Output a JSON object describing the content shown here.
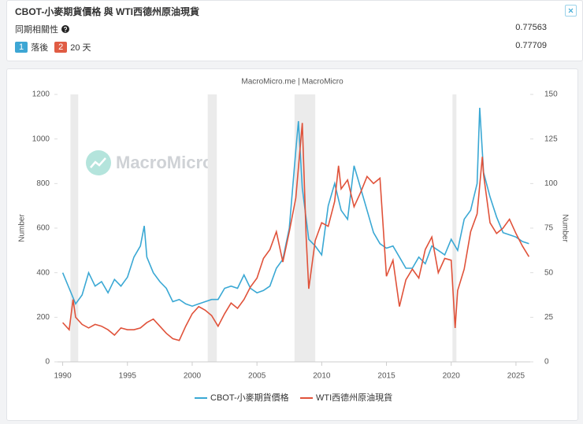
{
  "header": {
    "title": "CBOT-小麥期貨價格 與 WTI西德州原油現貨",
    "rows": [
      {
        "label": "同期相關性",
        "value": "0.77563"
      },
      {
        "badge1": "1",
        "text1": "落後",
        "badge2": "2",
        "text2": "20 天",
        "value": "0.77709"
      }
    ]
  },
  "chart_data": {
    "type": "line",
    "title": "MacroMicro.me | MacroMicro",
    "watermark": "MacroMicro",
    "ylabel": "Number",
    "y2label": "Number",
    "xlim": [
      1989.6,
      2026.1
    ],
    "xticks": [
      1990,
      1995,
      2000,
      2005,
      2010,
      2015,
      2020,
      2025
    ],
    "ylim": [
      0,
      1200
    ],
    "yticks": [
      0,
      200,
      400,
      600,
      800,
      1000,
      1200
    ],
    "y2lim": [
      0,
      150
    ],
    "y2ticks": [
      0,
      25,
      50,
      75,
      100,
      125,
      150
    ],
    "shaded_periods": [
      [
        1990.6,
        1991.2
      ],
      [
        2001.2,
        2001.9
      ],
      [
        2007.9,
        2009.5
      ],
      [
        2020.1,
        2020.4
      ]
    ],
    "legend": "bottom",
    "series": [
      {
        "name": "CBOT-小麥期貨價格",
        "color": "#3aa8d4",
        "axis": "y",
        "x": [
          1990,
          1990.5,
          1991,
          1991.5,
          1992,
          1992.5,
          1993,
          1993.5,
          1994,
          1994.5,
          1995,
          1995.5,
          1996,
          1996.3,
          1996.5,
          1997,
          1997.5,
          1998,
          1998.5,
          1999,
          1999.5,
          2000,
          2000.5,
          2001,
          2001.5,
          2002,
          2002.5,
          2003,
          2003.5,
          2004,
          2004.5,
          2005,
          2005.5,
          2006,
          2006.5,
          2007,
          2007.5,
          2008,
          2008.2,
          2008.5,
          2009,
          2009.5,
          2010,
          2010.5,
          2011,
          2011.5,
          2012,
          2012.5,
          2013,
          2013.5,
          2014,
          2014.5,
          2015,
          2015.5,
          2016,
          2016.5,
          2017,
          2017.5,
          2018,
          2018.5,
          2019,
          2019.5,
          2020,
          2020.5,
          2021,
          2021.5,
          2022,
          2022.2,
          2022.5,
          2023,
          2023.5,
          2024,
          2024.5,
          2025,
          2025.5,
          2026
        ],
        "values": [
          400,
          330,
          260,
          300,
          400,
          340,
          360,
          310,
          370,
          340,
          380,
          470,
          520,
          610,
          470,
          400,
          360,
          330,
          270,
          280,
          260,
          250,
          260,
          270,
          280,
          280,
          330,
          340,
          330,
          390,
          330,
          310,
          320,
          340,
          420,
          460,
          600,
          950,
          1080,
          780,
          550,
          520,
          480,
          700,
          800,
          680,
          640,
          880,
          780,
          680,
          580,
          530,
          510,
          520,
          470,
          420,
          420,
          470,
          440,
          520,
          500,
          480,
          550,
          500,
          640,
          680,
          800,
          1140,
          850,
          740,
          650,
          580,
          570,
          560,
          540,
          530
        ]
      },
      {
        "name": "WTI西德州原油現貨",
        "color": "#e0523a",
        "axis": "y2",
        "x": [
          1990,
          1990.5,
          1990.8,
          1991,
          1991.5,
          1992,
          1992.5,
          1993,
          1993.5,
          1994,
          1994.5,
          1995,
          1995.5,
          1996,
          1996.5,
          1997,
          1997.5,
          1998,
          1998.5,
          1999,
          1999.5,
          2000,
          2000.5,
          2001,
          2001.5,
          2002,
          2002.5,
          2003,
          2003.5,
          2004,
          2004.5,
          2005,
          2005.5,
          2006,
          2006.5,
          2007,
          2007.5,
          2008,
          2008.5,
          2008.8,
          2009,
          2009.5,
          2010,
          2010.5,
          2011,
          2011.3,
          2011.5,
          2012,
          2012.5,
          2013,
          2013.5,
          2014,
          2014.5,
          2015,
          2015.5,
          2016,
          2016.5,
          2017,
          2017.5,
          2018,
          2018.5,
          2019,
          2019.5,
          2020,
          2020.3,
          2020.5,
          2021,
          2021.5,
          2022,
          2022.4,
          2022.5,
          2023,
          2023.5,
          2024,
          2024.5,
          2025,
          2025.5,
          2026
        ],
        "values": [
          22,
          18,
          35,
          25,
          21,
          19,
          21,
          20,
          18,
          15,
          19,
          18,
          18,
          19,
          22,
          24,
          20,
          16,
          13,
          12,
          20,
          27,
          31,
          29,
          26,
          20,
          27,
          33,
          30,
          35,
          42,
          47,
          58,
          63,
          73,
          56,
          73,
          92,
          134,
          70,
          41,
          68,
          78,
          76,
          90,
          110,
          97,
          102,
          87,
          95,
          104,
          100,
          103,
          48,
          57,
          31,
          46,
          52,
          47,
          63,
          70,
          50,
          58,
          57,
          19,
          40,
          52,
          73,
          83,
          115,
          105,
          78,
          72,
          75,
          80,
          72,
          65,
          59
        ]
      }
    ]
  }
}
